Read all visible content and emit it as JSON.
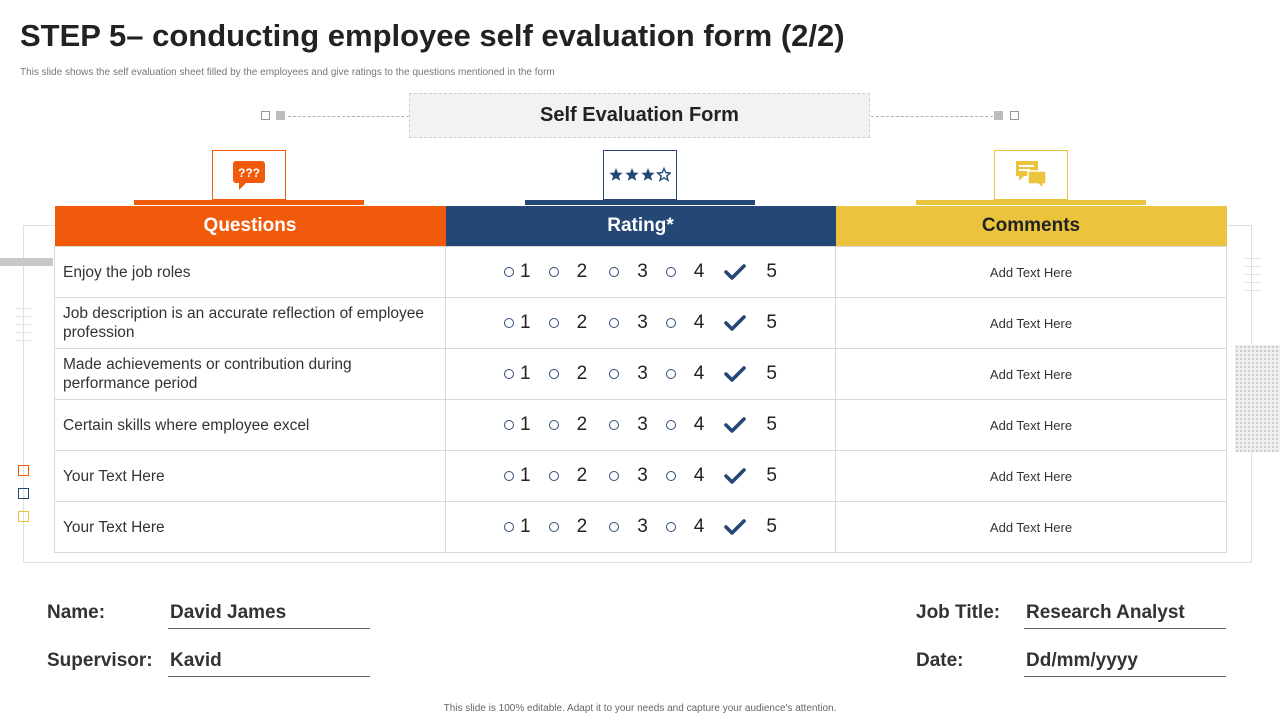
{
  "title": "STEP 5– conducting employee self evaluation form (2/2)",
  "subtitle": "This slide shows the self evaluation sheet filled by the employees and give ratings to the questions mentioned  in the form",
  "form_title": "Self Evaluation Form",
  "colors": {
    "questions": "#f05a0a",
    "rating": "#254776",
    "comments": "#ecc33c"
  },
  "icons": {
    "questions": "question-bubble-icon",
    "rating": "stars-icon",
    "comments": "comment-icon"
  },
  "icon_text": {
    "questions": "???"
  },
  "headers": {
    "questions": "Questions",
    "rating": "Rating*",
    "comments": "Comments"
  },
  "rating_labels": [
    "1",
    "2",
    "3",
    "4",
    "5"
  ],
  "rows": [
    {
      "question": "Enjoy the job roles",
      "comment": "Add Text Here",
      "selected": 5
    },
    {
      "question": "Job description is an accurate reflection  of employee profession",
      "comment": "Add Text Here",
      "selected": 5
    },
    {
      "question": "Made achievements or contribution during performance period",
      "comment": "Add Text Here",
      "selected": 5
    },
    {
      "question": "Certain skills where employee excel",
      "comment": "Add Text Here",
      "selected": 5
    },
    {
      "question": "Your Text Here",
      "comment": "Add Text Here",
      "selected": 5
    },
    {
      "question": "Your Text Here",
      "comment": "Add Text Here",
      "selected": 5
    }
  ],
  "fields": {
    "name_label": "Name:",
    "name_value": "David James",
    "supervisor_label": "Supervisor:",
    "supervisor_value": "Kavid",
    "job_title_label": "Job Title:",
    "job_title_value": "Research Analyst",
    "date_label": "Date:",
    "date_value": "Dd/mm/yyyy"
  },
  "footer": "This slide is 100% editable.  Adapt it to your needs and capture your audience's attention."
}
